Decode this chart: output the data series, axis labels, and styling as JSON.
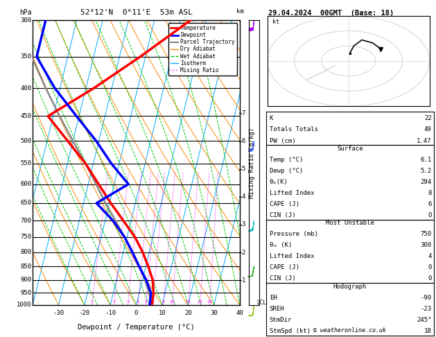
{
  "title_left": "52°12'N  0°11'E  53m ASL",
  "title_right": "29.04.2024  00GMT  (Base: 18)",
  "xlabel": "Dewpoint / Temperature (°C)",
  "ylabel_right": "Mixing Ratio (g/kg)",
  "pressure_ticks": [
    300,
    350,
    400,
    450,
    500,
    550,
    600,
    650,
    700,
    750,
    800,
    850,
    900,
    950,
    1000
  ],
  "temp_ticks": [
    -30,
    -20,
    -10,
    0,
    10,
    20,
    30,
    40
  ],
  "isotherm_color": "#00AAFF",
  "dry_adiabat_color": "#FF8800",
  "wet_adiabat_color": "#00CC00",
  "mixing_ratio_color": "#FF00FF",
  "mixing_ratio_values": [
    1,
    2,
    3,
    4,
    5,
    6,
    8,
    10,
    15,
    20,
    25
  ],
  "mixing_ratio_labels": [
    "1",
    "2",
    "3",
    "4",
    "5",
    "6",
    "8",
    "10",
    "15",
    "20",
    "25"
  ],
  "temp_profile_T": [
    6.1,
    5.5,
    4.0,
    1.0,
    -2.5,
    -7.0,
    -13.0,
    -19.5,
    -26.0,
    -33.0,
    -42.0,
    -52.0,
    -37.0,
    -22.0,
    -6.0
  ],
  "temp_profile_P": [
    1000,
    950,
    900,
    850,
    800,
    750,
    700,
    650,
    600,
    550,
    500,
    450,
    400,
    350,
    300
  ],
  "dewp_profile_T": [
    5.2,
    4.5,
    1.5,
    -2.5,
    -6.5,
    -11.0,
    -17.0,
    -25.0,
    -14.5,
    -23.0,
    -31.0,
    -41.0,
    -52.0,
    -62.0,
    -62.0
  ],
  "dewp_profile_P": [
    1000,
    950,
    900,
    850,
    800,
    750,
    700,
    650,
    600,
    550,
    500,
    450,
    400,
    350,
    300
  ],
  "parcel_T": [
    6.1,
    3.8,
    1.0,
    -2.5,
    -6.5,
    -11.0,
    -16.0,
    -21.5,
    -27.0,
    -33.0,
    -40.0,
    -47.5,
    -55.5,
    -64.0,
    -73.0
  ],
  "parcel_P": [
    1000,
    950,
    900,
    850,
    800,
    750,
    700,
    650,
    600,
    550,
    500,
    450,
    400,
    350,
    300
  ],
  "skew_factor": 27,
  "temp_color": "#FF0000",
  "dewp_color": "#0000FF",
  "parcel_color": "#888888",
  "lcl_pressure": 990,
  "km_levels": [
    1,
    2,
    3,
    4,
    5,
    6,
    7
  ],
  "stats_K": "22",
  "stats_TT": "49",
  "stats_PW": "1.47",
  "stats_surf_temp": "6.1",
  "stats_surf_dewp": "5.2",
  "stats_surf_thetae": "294",
  "stats_surf_li": "8",
  "stats_surf_cape": "6",
  "stats_surf_cin": "0",
  "stats_mu_pres": "750",
  "stats_mu_thetae": "300",
  "stats_mu_li": "4",
  "stats_mu_cape": "0",
  "stats_mu_cin": "0",
  "stats_hodo_eh": "-90",
  "stats_hodo_sreh": "-23",
  "stats_hodo_stmdir": "245°",
  "stats_hodo_stmspd": "18",
  "copyright": "© weatheronline.co.uk",
  "P_min": 300,
  "P_max": 1000
}
